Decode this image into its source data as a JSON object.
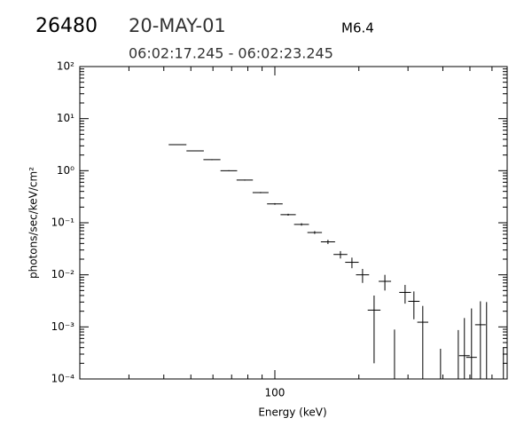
{
  "header": {
    "id": "26480",
    "date": "20-MAY-01",
    "class": "M6.4",
    "time_range": "06:02:17.245 - 06:02:23.245"
  },
  "chart_data": {
    "type": "errorbar",
    "xlabel": "Energy (keV)",
    "ylabel": "photons/sec/keV/cm²",
    "xscale": "log",
    "yscale": "log",
    "xlim": [
      20,
      680
    ],
    "ylim": [
      0.0001,
      100
    ],
    "xticks": [
      100
    ],
    "yticks": [
      {
        "value": 0.0001,
        "label": "10⁻⁴"
      },
      {
        "value": 0.001,
        "label": "10⁻³"
      },
      {
        "value": 0.01,
        "label": "10⁻²"
      },
      {
        "value": 0.1,
        "label": "10⁻¹"
      },
      {
        "value": 1,
        "label": "10⁰"
      },
      {
        "value": 10,
        "label": "10¹"
      },
      {
        "value": 100,
        "label": "10²"
      }
    ],
    "color": "#000000",
    "x": [
      44.8,
      51.8,
      59.5,
      68.4,
      78.0,
      88.9,
      100,
      111.6,
      124.6,
      138.9,
      155.0,
      171.8,
      188.9,
      206.2,
      226.8,
      247.9,
      268.4,
      292.9,
      315.0,
      338.9,
      392.4,
      454.3,
      477.8,
      506.7,
      545.3,
      573.7,
      659.2
    ],
    "values": [
      3.16,
      2.4,
      1.63,
      1.0,
      0.66,
      0.38,
      0.23,
      0.143,
      0.093,
      0.065,
      0.043,
      0.0246,
      0.0174,
      0.01,
      0.0021,
      0.0075,
      0,
      0.0046,
      0.0031,
      0.00123,
      0,
      0,
      0.00028,
      0.00026,
      0.0011,
      0,
      0
    ],
    "errors": [
      0.05,
      0.04,
      0.03,
      0.02,
      0.015,
      0.01,
      0.008,
      0.006,
      0.005,
      0.004,
      0.004,
      0.004,
      0.004,
      0.003,
      0.0019,
      0.0025,
      0.00089,
      0.0018,
      0.0017,
      0.0013,
      0.00038,
      0.00087,
      0.0012,
      0.002,
      0.002,
      0.003,
      0.0004
    ]
  }
}
